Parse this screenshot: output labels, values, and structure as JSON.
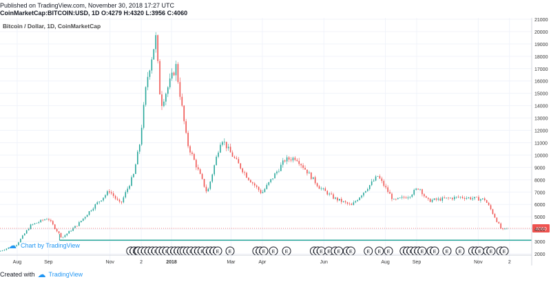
{
  "header": {
    "published": "Published on TradingView.com, November 30, 2018 17:27 UTC",
    "symbol_line": "CoinMarketCap:BITCOIN:USD, 1D O:4279 H:4320 L:3956 C:4060"
  },
  "footer": {
    "created_with": "Created with",
    "brand": "TradingView",
    "watermark": "Chart by TradingView"
  },
  "colors": {
    "up": "#26a69a",
    "down": "#ef5350",
    "price_line": "#ef5350",
    "support": "#26a69a"
  },
  "icons": {
    "logo": "tradingview-cloud-icon",
    "event": "earnings-event-icon"
  },
  "chart_data": {
    "type": "candlestick",
    "title": "Bitcoin / Dollar, 1D, CoinMarketCap",
    "ylim": [
      2000,
      21000
    ],
    "yticks": [
      "21000",
      "20000",
      "19000",
      "18000",
      "17000",
      "16000",
      "15000",
      "14000",
      "13000",
      "12000",
      "11000",
      "10000",
      "9000",
      "8000",
      "7000",
      "6000",
      "5000",
      "4000",
      "3000",
      "2000"
    ],
    "xticks": [
      {
        "label": "Aug",
        "x": "2017-08-01"
      },
      {
        "label": "Sep",
        "x": "2017-09-01"
      },
      {
        "label": "Nov",
        "x": "2017-11-01"
      },
      {
        "label": "2",
        "x": "2017-12-02"
      },
      {
        "label": "2018",
        "x": "2018-01-01"
      },
      {
        "label": "Mar",
        "x": "2018-03-01"
      },
      {
        "label": "Apr",
        "x": "2018-04-01"
      },
      {
        "label": "Jun",
        "x": "2018-06-01"
      },
      {
        "label": "Aug",
        "x": "2018-08-01"
      },
      {
        "label": "Sep",
        "x": "2018-09-01"
      },
      {
        "label": "Nov",
        "x": "2018-11-01"
      },
      {
        "label": "2",
        "x": "2018-12-02"
      }
    ],
    "x_range": [
      "2017-07-15",
      "2018-12-24"
    ],
    "current_price": 4060,
    "current_price_label": "4060",
    "support_level": 3100,
    "price_path": [
      [
        "2017-07-15",
        2200
      ],
      [
        "2017-08-01",
        2750
      ],
      [
        "2017-08-15",
        4300
      ],
      [
        "2017-09-01",
        4900
      ],
      [
        "2017-09-15",
        3300
      ],
      [
        "2017-10-01",
        4400
      ],
      [
        "2017-10-15",
        5700
      ],
      [
        "2017-11-01",
        7100
      ],
      [
        "2017-11-12",
        6000
      ],
      [
        "2017-11-25",
        8400
      ],
      [
        "2017-12-01",
        10900
      ],
      [
        "2017-12-08",
        16000
      ],
      [
        "2017-12-17",
        19500
      ],
      [
        "2017-12-22",
        14000
      ],
      [
        "2018-01-06",
        17200
      ],
      [
        "2018-01-17",
        11000
      ],
      [
        "2018-02-06",
        6900
      ],
      [
        "2018-02-20",
        11400
      ],
      [
        "2018-02-28",
        10300
      ],
      [
        "2018-03-18",
        8200
      ],
      [
        "2018-04-01",
        6900
      ],
      [
        "2018-04-24",
        9600
      ],
      [
        "2018-05-05",
        9800
      ],
      [
        "2018-05-28",
        7400
      ],
      [
        "2018-06-12",
        6500
      ],
      [
        "2018-06-29",
        5900
      ],
      [
        "2018-07-25",
        8300
      ],
      [
        "2018-08-10",
        6300
      ],
      [
        "2018-08-25",
        6700
      ],
      [
        "2018-09-04",
        7400
      ],
      [
        "2018-09-12",
        6300
      ],
      [
        "2018-10-15",
        6600
      ],
      [
        "2018-11-08",
        6400
      ],
      [
        "2018-11-14",
        5600
      ],
      [
        "2018-11-25",
        3900
      ],
      [
        "2018-11-30",
        4060
      ]
    ],
    "event_clusters": [
      {
        "x": "2017-11-25",
        "n": 3
      },
      {
        "x": "2017-12-08",
        "n": 6
      },
      {
        "x": "2017-12-24",
        "n": 3
      },
      {
        "x": "2018-01-06",
        "n": 4
      },
      {
        "x": "2018-01-17",
        "n": 3
      },
      {
        "x": "2018-01-28",
        "n": 3
      },
      {
        "x": "2018-02-07",
        "n": 2
      },
      {
        "x": "2018-02-14",
        "n": 2
      },
      {
        "x": "2018-02-28",
        "n": 1
      },
      {
        "x": "2018-03-30",
        "n": 3
      },
      {
        "x": "2018-04-12",
        "n": 1
      },
      {
        "x": "2018-04-25",
        "n": 1
      },
      {
        "x": "2018-05-26",
        "n": 3
      },
      {
        "x": "2018-06-06",
        "n": 1
      },
      {
        "x": "2018-06-14",
        "n": 2
      },
      {
        "x": "2018-06-26",
        "n": 2
      },
      {
        "x": "2018-07-15",
        "n": 1
      },
      {
        "x": "2018-07-26",
        "n": 1
      },
      {
        "x": "2018-08-04",
        "n": 1
      },
      {
        "x": "2018-08-23",
        "n": 3
      },
      {
        "x": "2018-09-03",
        "n": 3
      },
      {
        "x": "2018-09-17",
        "n": 2
      },
      {
        "x": "2018-10-01",
        "n": 1
      },
      {
        "x": "2018-10-14",
        "n": 1
      },
      {
        "x": "2018-10-30",
        "n": 3
      },
      {
        "x": "2018-11-12",
        "n": 2
      },
      {
        "x": "2018-11-25",
        "n": 2
      }
    ]
  }
}
